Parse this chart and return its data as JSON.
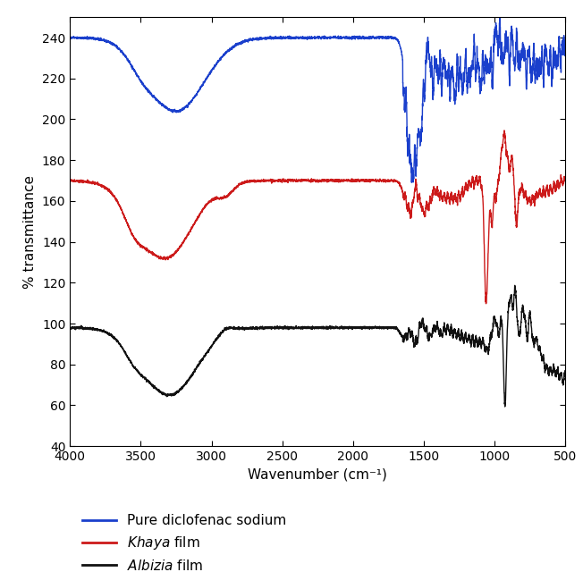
{
  "xlabel": "Wavenumber (cm⁻¹)",
  "ylabel": "% transmittance",
  "xlim": [
    4000,
    500
  ],
  "ylim": [
    40,
    250
  ],
  "yticks": [
    40,
    60,
    80,
    100,
    120,
    140,
    160,
    180,
    200,
    220,
    240
  ],
  "xticks": [
    4000,
    3500,
    3000,
    2500,
    2000,
    1500,
    1000,
    500
  ],
  "blue_color": "#1a3fcc",
  "red_color": "#cc1a1a",
  "black_color": "#111111",
  "legend_labels": [
    "Pure diclofenac sodium",
    "Khaya film",
    "Albizia film"
  ],
  "figsize": [
    6.52,
    6.4
  ],
  "dpi": 100
}
